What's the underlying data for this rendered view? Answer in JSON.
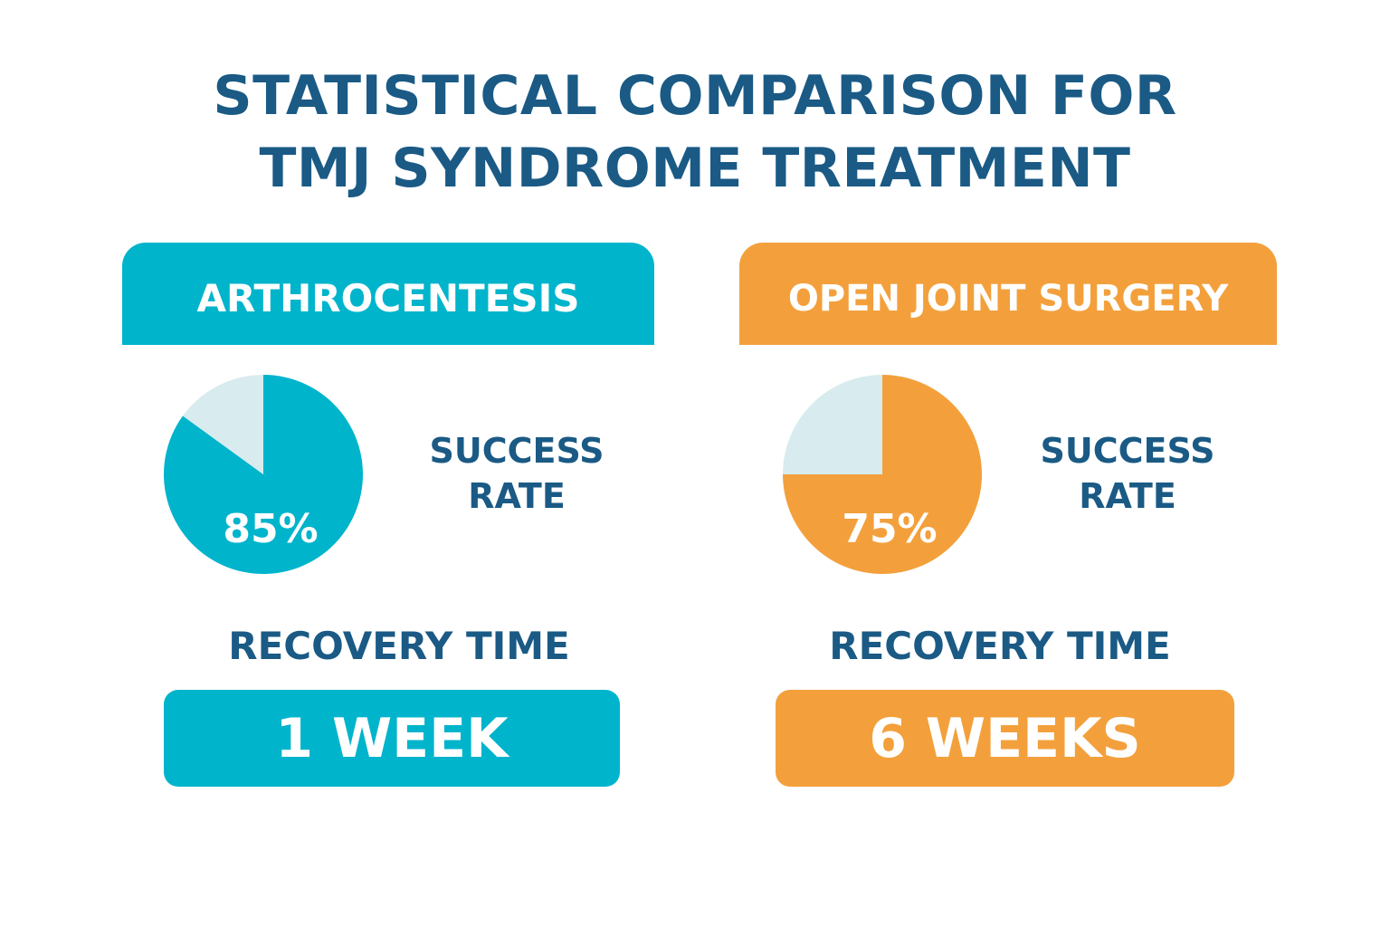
{
  "title": {
    "line1": "STATISTICAL COMPARISON FOR",
    "line2": "TMJ SYNDROME TREATMENT"
  },
  "colors": {
    "title": "#1a5a85",
    "arthrocentesis": "#00b4cc",
    "open_joint_surgery": "#f3a03c",
    "pie_remainder": "#d8ebef"
  },
  "chart_data": [
    {
      "type": "pie",
      "treatment": "ARTHROCENTESIS",
      "metric_label": [
        "SUCCESS",
        "RATE"
      ],
      "values": [
        85,
        15
      ],
      "value_label": "85%",
      "recovery_label": "RECOVERY TIME",
      "recovery_value": "1 WEEK"
    },
    {
      "type": "pie",
      "treatment": "OPEN JOINT SURGERY",
      "metric_label": [
        "SUCCESS",
        "RATE"
      ],
      "values": [
        75,
        25
      ],
      "value_label": "75%",
      "recovery_label": "RECOVERY TIME",
      "recovery_value": "6 WEEKS"
    }
  ]
}
